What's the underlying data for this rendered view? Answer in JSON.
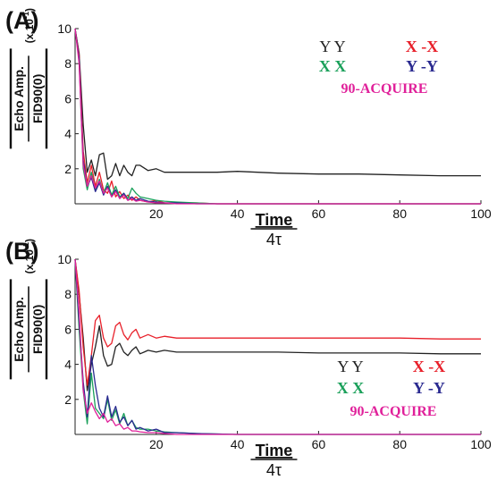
{
  "chart_data": [
    {
      "type": "line",
      "panel_label": "(A)",
      "xlabel": "Time",
      "xlabel_denominator": "4τ",
      "ylabel": "Echo Amp.",
      "ylabel_denominator": "FID90(0)",
      "ylabel_scale": "(x 10",
      "ylabel_scale_exp": "-1",
      "ylabel_scale_close": ")",
      "xlim": [
        0,
        100
      ],
      "ylim": [
        0,
        10
      ],
      "xticks": [
        "20",
        "40",
        "60",
        "80",
        "100"
      ],
      "yticks": [
        "2",
        "4",
        "6",
        "8",
        "10"
      ],
      "legend_placement": "top-right",
      "legend": [
        {
          "label": "Y   Y",
          "color": "#222222"
        },
        {
          "label": "X -X",
          "color": "#e8202a"
        },
        {
          "label": "X  X",
          "color": "#1aa05a"
        },
        {
          "label": "Y -Y",
          "color": "#2a2a90"
        },
        {
          "label": "90-ACQUIRE",
          "color": "#e0209a"
        }
      ],
      "series": [
        {
          "name": "Y   Y",
          "color": "#222222",
          "x": [
            0,
            1,
            2,
            3,
            4,
            5,
            6,
            7,
            8,
            9,
            10,
            11,
            12,
            13,
            14,
            15,
            16,
            18,
            20,
            22,
            25,
            30,
            35,
            40,
            50,
            60,
            70,
            80,
            90,
            100
          ],
          "y": [
            10,
            8.6,
            4.5,
            1.8,
            2.5,
            1.6,
            2.8,
            2.9,
            1.4,
            1.6,
            2.3,
            1.6,
            2.2,
            1.8,
            1.6,
            2.2,
            2.2,
            1.9,
            2.0,
            1.8,
            1.8,
            1.8,
            1.8,
            1.85,
            1.75,
            1.7,
            1.7,
            1.65,
            1.6,
            1.6
          ]
        },
        {
          "name": "X -X",
          "color": "#e8202a",
          "x": [
            0,
            1,
            2,
            3,
            4,
            5,
            6,
            7,
            8,
            9,
            10,
            11,
            12,
            13,
            14,
            15,
            16,
            18,
            20,
            22,
            25,
            30,
            35,
            40,
            60,
            80,
            100
          ],
          "y": [
            10,
            8.5,
            3.0,
            1.2,
            2.2,
            1.0,
            1.8,
            0.8,
            0.6,
            1.3,
            0.4,
            0.7,
            0.3,
            0.5,
            0.2,
            0.4,
            0.2,
            0.1,
            0.2,
            0.05,
            0.05,
            0.05,
            0,
            0,
            0,
            0,
            0
          ]
        },
        {
          "name": "X  X",
          "color": "#1aa05a",
          "x": [
            0,
            1,
            2,
            3,
            4,
            5,
            6,
            7,
            8,
            9,
            10,
            11,
            12,
            13,
            14,
            15,
            16,
            18,
            20,
            22,
            25,
            30,
            35,
            40,
            60,
            80,
            100
          ],
          "y": [
            10,
            8.2,
            2.0,
            0.8,
            1.8,
            0.8,
            1.4,
            0.6,
            1.2,
            0.5,
            1.0,
            0.4,
            0.6,
            0.3,
            0.9,
            0.6,
            0.4,
            0.3,
            0.2,
            0.15,
            0.1,
            0.05,
            0,
            0,
            0,
            0,
            0
          ]
        },
        {
          "name": "Y -Y",
          "color": "#2a2a90",
          "x": [
            0,
            1,
            2,
            3,
            4,
            5,
            6,
            7,
            8,
            9,
            10,
            11,
            12,
            13,
            14,
            15,
            16,
            18,
            20,
            22,
            25,
            30,
            35,
            40,
            60,
            80,
            100
          ],
          "y": [
            10,
            8.3,
            2.5,
            1.0,
            1.5,
            0.7,
            1.2,
            0.5,
            1.0,
            0.4,
            0.8,
            0.3,
            0.6,
            0.2,
            0.4,
            0.2,
            0.3,
            0.15,
            0.1,
            0.05,
            0.05,
            0,
            0,
            0,
            0,
            0,
            0
          ]
        },
        {
          "name": "90-ACQUIRE",
          "color": "#e0209a",
          "x": [
            0,
            1,
            2,
            3,
            4,
            5,
            6,
            7,
            8,
            9,
            10,
            11,
            12,
            13,
            14,
            15,
            16,
            18,
            20,
            22,
            25,
            30,
            35,
            40,
            60,
            80,
            100
          ],
          "y": [
            10,
            8.0,
            2.2,
            1.0,
            1.6,
            0.9,
            1.3,
            0.6,
            0.9,
            0.4,
            0.7,
            0.3,
            0.5,
            0.2,
            0.3,
            0.15,
            0.2,
            0.1,
            0.05,
            0.05,
            0,
            0,
            0,
            0,
            0,
            0,
            0
          ]
        }
      ]
    },
    {
      "type": "line",
      "panel_label": "(B)",
      "xlabel": "Time",
      "xlabel_denominator": "4τ",
      "ylabel": "Echo Amp.",
      "ylabel_denominator": "FID90(0)",
      "ylabel_scale": "(x 10",
      "ylabel_scale_exp": "-1",
      "ylabel_scale_close": ")",
      "xlim": [
        0,
        100
      ],
      "ylim": [
        0,
        10
      ],
      "xticks": [
        "20",
        "40",
        "60",
        "80",
        "100"
      ],
      "yticks": [
        "2",
        "4",
        "6",
        "8",
        "10"
      ],
      "legend_placement": "bottom-right",
      "legend": [
        {
          "label": "Y   Y",
          "color": "#222222"
        },
        {
          "label": "X -X",
          "color": "#e8202a"
        },
        {
          "label": "X  X",
          "color": "#1aa05a"
        },
        {
          "label": "Y -Y",
          "color": "#2a2a90"
        },
        {
          "label": "90-ACQUIRE",
          "color": "#e0209a"
        }
      ],
      "series": [
        {
          "name": "Y   Y",
          "color": "#222222",
          "x": [
            0,
            1,
            2,
            3,
            4,
            5,
            6,
            7,
            8,
            9,
            10,
            11,
            12,
            13,
            14,
            15,
            16,
            17,
            18,
            20,
            22,
            25,
            30,
            40,
            50,
            60,
            70,
            80,
            90,
            100
          ],
          "y": [
            10,
            8.0,
            5.5,
            2.5,
            4.0,
            5.0,
            6.2,
            4.5,
            3.9,
            4.0,
            5.0,
            5.2,
            4.7,
            4.5,
            4.8,
            5.0,
            4.6,
            4.7,
            4.8,
            4.7,
            4.8,
            4.7,
            4.7,
            4.7,
            4.7,
            4.65,
            4.65,
            4.65,
            4.6,
            4.6
          ]
        },
        {
          "name": "X -X",
          "color": "#e8202a",
          "x": [
            0,
            1,
            2,
            3,
            4,
            5,
            6,
            7,
            8,
            9,
            10,
            11,
            12,
            13,
            14,
            15,
            16,
            17,
            18,
            20,
            22,
            25,
            30,
            40,
            50,
            60,
            70,
            80,
            90,
            100
          ],
          "y": [
            10,
            8.2,
            5.0,
            2.8,
            4.5,
            6.5,
            6.8,
            5.5,
            5.0,
            5.2,
            6.2,
            6.4,
            5.7,
            5.4,
            5.8,
            6.0,
            5.5,
            5.6,
            5.7,
            5.5,
            5.6,
            5.5,
            5.5,
            5.5,
            5.5,
            5.5,
            5.5,
            5.5,
            5.45,
            5.45
          ]
        },
        {
          "name": "X  X",
          "color": "#1aa05a",
          "x": [
            0,
            1,
            2,
            3,
            4,
            5,
            6,
            7,
            8,
            9,
            10,
            11,
            12,
            13,
            14,
            15,
            16,
            18,
            20,
            22,
            25,
            30,
            40,
            60,
            80,
            100
          ],
          "y": [
            10,
            6.0,
            2.5,
            0.6,
            3.5,
            1.5,
            1.2,
            0.9,
            2.0,
            0.8,
            1.4,
            0.6,
            1.2,
            0.5,
            0.8,
            0.4,
            0.3,
            0.3,
            0.2,
            0.15,
            0.1,
            0.05,
            0,
            0,
            0,
            0
          ]
        },
        {
          "name": "Y -Y",
          "color": "#2a2a90",
          "x": [
            0,
            1,
            2,
            3,
            4,
            5,
            6,
            7,
            8,
            9,
            10,
            11,
            12,
            13,
            14,
            15,
            16,
            18,
            20,
            22,
            25,
            30,
            40,
            60,
            80,
            100
          ],
          "y": [
            10,
            6.5,
            3.0,
            1.0,
            4.5,
            2.8,
            1.5,
            1.0,
            2.2,
            1.0,
            1.6,
            0.7,
            1.0,
            0.5,
            0.8,
            0.3,
            0.4,
            0.2,
            0.3,
            0.1,
            0.1,
            0.05,
            0,
            0,
            0,
            0
          ]
        },
        {
          "name": "90-ACQUIRE",
          "color": "#e0209a",
          "x": [
            0,
            1,
            2,
            3,
            4,
            5,
            6,
            7,
            8,
            9,
            10,
            11,
            12,
            13,
            14,
            15,
            16,
            18,
            20,
            22,
            25,
            30,
            40,
            60,
            80,
            100
          ],
          "y": [
            10,
            7.0,
            2.5,
            1.2,
            1.8,
            1.3,
            0.9,
            1.2,
            0.7,
            0.9,
            0.5,
            0.6,
            0.3,
            0.4,
            0.2,
            0.2,
            0.15,
            0.1,
            0.1,
            0.05,
            0,
            0,
            0,
            0,
            0,
            0
          ]
        }
      ]
    }
  ]
}
